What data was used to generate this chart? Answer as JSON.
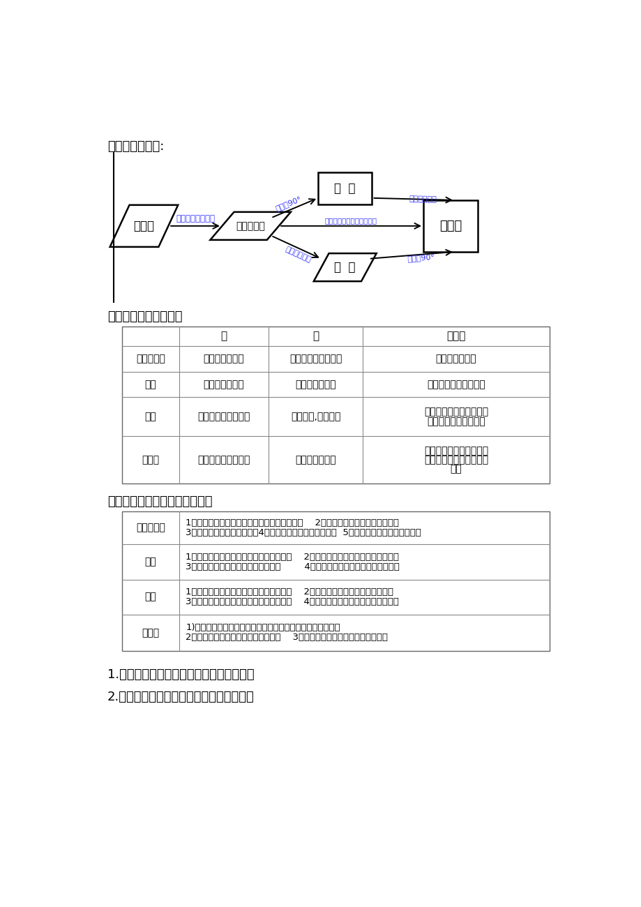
{
  "title1": "一、知识结构图:",
  "title2": "二、平行四边形的性质",
  "title3": "三、平行四边形的常用判定方法",
  "note1": "1.三角形的中位线平行且等于第三边的一半",
  "note2": "2.直角三角形斜边上的中线等于斜边的一半",
  "bg_color": "#ffffff",
  "text_color": "#000000",
  "blue_color": "#3333ff",
  "box_color": "#000000",
  "table1_headers": [
    "",
    "边",
    "角",
    "对角线"
  ],
  "table1_rows": [
    [
      "平行四边形",
      "对边平行且相等",
      "对角相等，邻角互补",
      "对角线互相平分"
    ],
    [
      "矩形",
      "对边平行且相等",
      "四个角都是直角",
      "对角线相等且互相平分"
    ],
    [
      "菱形",
      "对边平行，四边相等",
      "对角相等,邻角互补",
      "对角线互相垂直平分，每\n条对角线平分一组对角"
    ],
    [
      "正方形",
      "对边平行，四边相等",
      "四个角都是直角",
      "对角线互相垂直平分且相\n等，每条对角线平分一组\n对角"
    ]
  ],
  "table2_rows": [
    [
      "平行四边形",
      "1）两组对边分别平行的四边形是平行四边形；    2）两组对边分别相等的四边形；\n3）一组对边平行且相等的；4）两组对角分别相等的四边形  5）对角线互相平分的四边形；"
    ],
    [
      "矩形",
      "1）有一个角是直角的平行四边形是矩形；    2）有三个角是直角的四边形是矩形；\n3）对角线相等的平行四边形是矩形。        4）对角线平分且相等的四边形是矩形"
    ],
    [
      "菱形",
      "1）有一组邻边相等的平行四边形是菱形；    2）四条边都相等的四边形是菱形；\n3）对角线互相垂直的平行四边形是菱形。    4）对角线平分且垂直的四边形是菱形"
    ],
    [
      "正方形",
      "1)有一个角是直角且有一组邻边相等的平行四边形是正方形；\n2）有一组邻边相等的矩形是正方形；    3）有一个角是直角的菱形是正方形。"
    ]
  ]
}
